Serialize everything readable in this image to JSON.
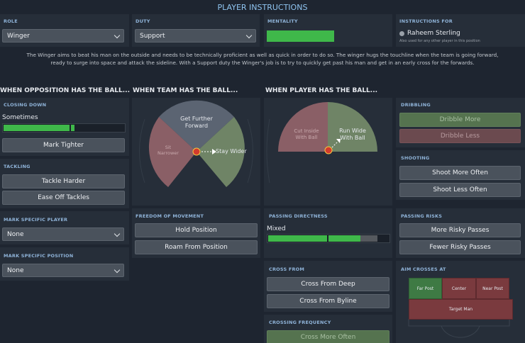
{
  "title": "PLAYER INSTRUCTIONS",
  "role": {
    "label": "ROLE",
    "value": "Winger"
  },
  "duty": {
    "label": "DUTY",
    "value": "Support"
  },
  "mentality": {
    "label": "MENTALITY",
    "level": 0.55
  },
  "instructions_for": {
    "label": "INSTRUCTIONS FOR",
    "player": "Raheem Sterling",
    "note": "Also used for any other player in this position"
  },
  "description": {
    "line1": "The Winger aims to beat his man on the outside and needs to be technically proficient as well as quick in order to do so. The winger hugs the touchline when the team is going forward,",
    "line2": "ready to surge into space and attack the sideline. With a Support duty the Winger's job is to try to quickly get past his man and get in an early cross for the forwards."
  },
  "sections": {
    "opposition": "WHEN OPPOSITION HAS THE BALL...",
    "team": "WHEN TEAM HAS THE BALL...",
    "player": "WHEN PLAYER HAS THE BALL..."
  },
  "closing_down": {
    "label": "CLOSING DOWN",
    "value": "Sometimes",
    "button": "Mark Tighter",
    "level": 0.6
  },
  "tackling": {
    "label": "TACKLING",
    "harder": "Tackle Harder",
    "ease": "Ease Off Tackles"
  },
  "mark_player": {
    "label": "MARK SPECIFIC PLAYER",
    "value": "None"
  },
  "mark_position": {
    "label": "MARK SPECIFIC POSITION",
    "value": "None"
  },
  "team_pitch": {
    "forward": "Get Further Forward",
    "narrow": "Sit Narrower",
    "wider": "Stay Wider"
  },
  "player_pitch": {
    "cut_inside": "Cut Inside With Ball",
    "run_wide": "Run Wide With Ball"
  },
  "freedom": {
    "label": "FREEDOM OF MOVEMENT",
    "hold": "Hold Position",
    "roam": "Roam From Position"
  },
  "passing_directness": {
    "label": "PASSING DIRECTNESS",
    "value": "Mixed",
    "level": 0.6
  },
  "cross_from": {
    "label": "CROSS FROM",
    "deep": "Cross From Deep",
    "byline": "Cross From Byline"
  },
  "crossing_frequency": {
    "label": "CROSSING FREQUENCY",
    "more": "Cross More Often"
  },
  "dribbling": {
    "label": "DRIBBLING",
    "more": "Dribble More",
    "less": "Dribble Less"
  },
  "shooting": {
    "label": "SHOOTING",
    "more": "Shoot More Often",
    "less": "Shoot Less Often"
  },
  "passing_risks": {
    "label": "PASSING RISKS",
    "more": "More Risky Passes",
    "fewer": "Fewer Risky Passes"
  },
  "aim_crosses": {
    "label": "AIM CROSSES AT",
    "far": "Far Post",
    "center": "Center",
    "near": "Near Post",
    "target": "Target Man"
  }
}
